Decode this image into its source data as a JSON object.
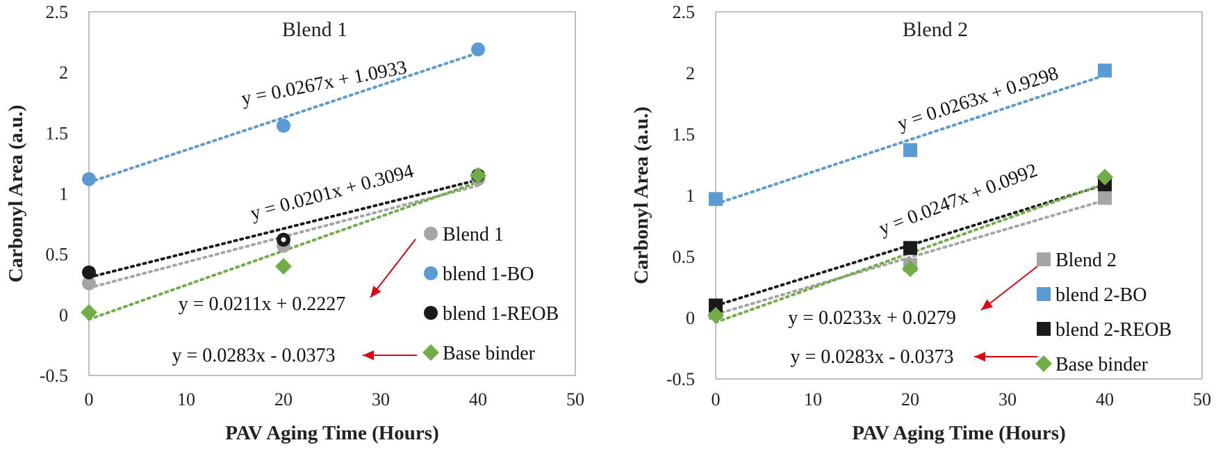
{
  "chart_data": [
    {
      "type": "scatter",
      "title": "Blend 1",
      "xlabel": "PAV Aging Time (Hours)",
      "ylabel": "Carbonyl Area (a.u.)",
      "xlim": [
        0,
        50
      ],
      "ylim": [
        -0.5,
        2.5
      ],
      "xticks": [
        0,
        10,
        20,
        30,
        40,
        50
      ],
      "yticks": [
        -0.5,
        0,
        0.5,
        1,
        1.5,
        2,
        2.5
      ],
      "ytick_labels": [
        "-0.5",
        "0",
        "0.5",
        "1",
        "1.5",
        "2",
        "2.5"
      ],
      "x": [
        0,
        20,
        40
      ],
      "series": [
        {
          "name": "Blend 1",
          "marker": "circle",
          "color": "#A5A5A5",
          "values": [
            0.26,
            0.57,
            1.12
          ],
          "trend": [
            0.0211,
            0.2227
          ]
        },
        {
          "name": "blend 1-BO",
          "marker": "circle",
          "color": "#5B9BD5",
          "values": [
            1.12,
            1.56,
            2.19
          ],
          "trend": [
            0.0267,
            1.0933
          ]
        },
        {
          "name": "blend 1-REOB",
          "marker": "circle",
          "color": "#1A1A1A",
          "values": [
            0.35,
            0.62,
            1.15
          ],
          "trend": [
            0.0201,
            0.3094
          ]
        },
        {
          "name": "Base binder",
          "marker": "diamond",
          "color": "#70AD47",
          "values": [
            0.02,
            0.4,
            1.15
          ],
          "trend": [
            0.0283,
            -0.0373
          ]
        }
      ],
      "equations": [
        "y = 0.0267x + 1.0933",
        "y = 0.0201x + 0.3094",
        "y = 0.0211x + 0.2227",
        "y = 0.0283x - 0.0373"
      ]
    },
    {
      "type": "scatter",
      "title": "Blend 2",
      "xlabel": "PAV Aging Time (Hours)",
      "ylabel": "Carbonyl Area (a.u.)",
      "xlim": [
        0,
        50
      ],
      "ylim": [
        -0.5,
        2.5
      ],
      "xticks": [
        0,
        10,
        20,
        30,
        40,
        50
      ],
      "yticks": [
        -0.5,
        0,
        0.5,
        1,
        1.5,
        2,
        2.5
      ],
      "ytick_labels": [
        "-0.5",
        "0",
        "0.5",
        "1",
        "1.5",
        "2",
        "2.5"
      ],
      "x": [
        0,
        20,
        40
      ],
      "series": [
        {
          "name": "Blend 2",
          "marker": "square",
          "color": "#A5A5A5",
          "values": [
            0.04,
            0.43,
            0.98
          ],
          "trend": [
            0.0233,
            0.0279
          ]
        },
        {
          "name": "blend 2-BO",
          "marker": "square",
          "color": "#5B9BD5",
          "values": [
            0.97,
            1.37,
            2.02
          ],
          "trend": [
            0.0263,
            0.9298
          ]
        },
        {
          "name": "blend 2-REOB",
          "marker": "square",
          "color": "#1A1A1A",
          "values": [
            0.1,
            0.57,
            1.09
          ],
          "trend": [
            0.0247,
            0.0992
          ]
        },
        {
          "name": "Base binder",
          "marker": "diamond",
          "color": "#70AD47",
          "values": [
            0.02,
            0.4,
            1.15
          ],
          "trend": [
            0.0283,
            -0.0373
          ]
        }
      ],
      "equations": [
        "y = 0.0263x + 0.9298",
        "y = 0.0247x + 0.0992",
        "y = 0.0233x + 0.0279",
        "y = 0.0283x - 0.0373"
      ]
    }
  ],
  "colors": {
    "arrow": "#E3000F",
    "frame": "#BFBFBF"
  }
}
